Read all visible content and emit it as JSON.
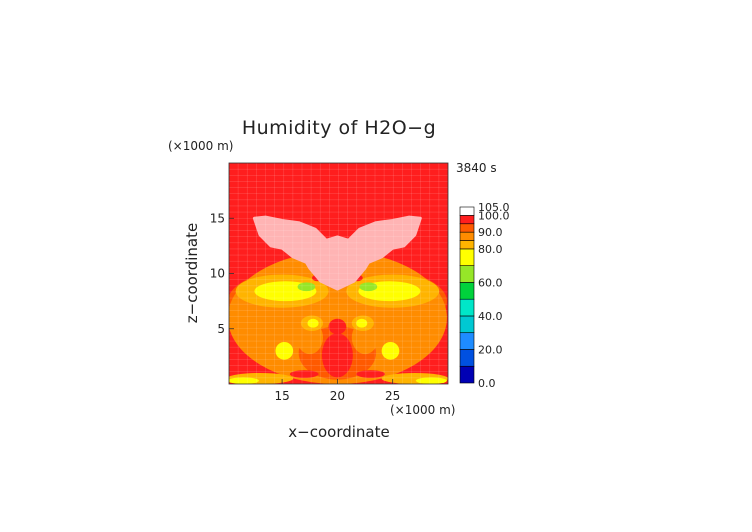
{
  "chart_data": {
    "type": "heatmap",
    "title": "Humidity of H2O−g",
    "time_label": "3840 s",
    "xlabel": "x−coordinate",
    "ylabel": "z−coordinate",
    "x_unit": "(×1000 m)",
    "y_unit": "(×1000 m)",
    "xlim": [
      10.2,
      30.0
    ],
    "ylim": [
      0.0,
      20.0
    ],
    "x_ticks": [
      15,
      20,
      25
    ],
    "y_ticks": [
      5,
      10,
      15
    ],
    "colorbar": {
      "levels": [
        0,
        10,
        20,
        30,
        40,
        50,
        60,
        70,
        80,
        85,
        90,
        95,
        100,
        105
      ],
      "labeled_levels": [
        0.0,
        20.0,
        40.0,
        60.0,
        80.0,
        90.0,
        100.0,
        105.0
      ],
      "colors": [
        "#0000b4",
        "#0050e0",
        "#1e8cff",
        "#00c8d2",
        "#00e6c8",
        "#00d23c",
        "#96e628",
        "#ffff00",
        "#ffb400",
        "#ff8c00",
        "#ff5a00",
        "#ff1e1e",
        "#ffffff"
      ]
    },
    "background_color": "#ff1e1e",
    "regions": [
      {
        "level": 90,
        "color": "#ff5a00",
        "center": [
          20,
          7.5
        ],
        "radii": [
          9.9,
          3.5
        ]
      },
      {
        "level": 85,
        "color": "#ff8c00",
        "center": [
          20,
          6.0
        ],
        "radii": [
          9.9,
          6.0
        ]
      },
      {
        "level": 80,
        "color": "#ffb400",
        "center": [
          15.0,
          8.4
        ],
        "radii": [
          4.2,
          1.5
        ]
      },
      {
        "level": 80,
        "color": "#ffb400",
        "center": [
          25.0,
          8.4
        ],
        "radii": [
          4.2,
          1.5
        ]
      },
      {
        "level": 70,
        "color": "#ffff00",
        "center": [
          15.3,
          8.4
        ],
        "radii": [
          2.8,
          0.9
        ]
      },
      {
        "level": 70,
        "color": "#ffff00",
        "center": [
          24.7,
          8.4
        ],
        "radii": [
          2.8,
          0.9
        ]
      },
      {
        "level": 60,
        "color": "#96e628",
        "center": [
          17.2,
          8.8
        ],
        "radii": [
          0.8,
          0.4
        ]
      },
      {
        "level": 60,
        "color": "#96e628",
        "center": [
          22.8,
          8.8
        ],
        "radii": [
          0.8,
          0.4
        ]
      },
      {
        "level": 90,
        "color": "#ff5a00",
        "center": [
          20,
          2.8
        ],
        "radii": [
          3.5,
          2.4
        ]
      },
      {
        "level": 85,
        "color": "#ff8c00",
        "center": [
          17.5,
          4.2
        ],
        "radii": [
          1.2,
          1.5
        ]
      },
      {
        "level": 85,
        "color": "#ff8c00",
        "center": [
          22.5,
          4.2
        ],
        "radii": [
          1.2,
          1.5
        ]
      },
      {
        "level": 80,
        "color": "#ffb400",
        "center": [
          17.7,
          5.5
        ],
        "radii": [
          1.0,
          0.7
        ]
      },
      {
        "level": 80,
        "color": "#ffb400",
        "center": [
          22.3,
          5.5
        ],
        "radii": [
          1.0,
          0.7
        ]
      },
      {
        "level": 70,
        "color": "#ffff00",
        "center": [
          17.8,
          5.5
        ],
        "radii": [
          0.5,
          0.4
        ]
      },
      {
        "level": 70,
        "color": "#ffff00",
        "center": [
          22.2,
          5.5
        ],
        "radii": [
          0.5,
          0.4
        ]
      },
      {
        "level": 100,
        "color": "#ff1e1e",
        "center": [
          20,
          5.2
        ],
        "radii": [
          0.8,
          0.7
        ]
      },
      {
        "level": 100,
        "color": "#ff1e1e",
        "center": [
          20,
          2.6
        ],
        "radii": [
          1.4,
          2.0
        ]
      },
      {
        "level": 70,
        "color": "#ffff00",
        "center": [
          15.2,
          3.0
        ],
        "radii": [
          0.8,
          0.8
        ]
      },
      {
        "level": 70,
        "color": "#ffff00",
        "center": [
          24.8,
          3.0
        ],
        "radii": [
          0.8,
          0.8
        ]
      },
      {
        "level": 80,
        "color": "#ffb400",
        "center": [
          13,
          0.5
        ],
        "radii": [
          3.0,
          0.5
        ]
      },
      {
        "level": 80,
        "color": "#ffb400",
        "center": [
          27,
          0.5
        ],
        "radii": [
          3.0,
          0.5
        ]
      },
      {
        "level": 70,
        "color": "#ffff00",
        "center": [
          11.5,
          0.3
        ],
        "radii": [
          1.4,
          0.3
        ]
      },
      {
        "level": 70,
        "color": "#ffff00",
        "center": [
          28.5,
          0.3
        ],
        "radii": [
          1.4,
          0.3
        ]
      },
      {
        "level": 100,
        "color": "#ff1e1e",
        "center": [
          17.0,
          0.9
        ],
        "radii": [
          1.3,
          0.35
        ]
      },
      {
        "level": 100,
        "color": "#ff1e1e",
        "center": [
          23.0,
          0.9
        ],
        "radii": [
          1.3,
          0.35
        ]
      },
      {
        "level": 100,
        "color": "#ff1e1e",
        "center": [
          18.2,
          9.6
        ],
        "radii": [
          0.5,
          0.3
        ]
      },
      {
        "level": 100,
        "color": "#ff1e1e",
        "center": [
          21.8,
          9.6
        ],
        "radii": [
          0.5,
          0.3
        ]
      }
    ],
    "plume": {
      "level": 105,
      "color": "#ffb4b4",
      "outline": [
        [
          12.5,
          15.0
        ],
        [
          13.5,
          15.1
        ],
        [
          15.0,
          14.8
        ],
        [
          16.5,
          14.6
        ],
        [
          18.0,
          14.0
        ],
        [
          19.0,
          13.0
        ],
        [
          20.0,
          13.3
        ],
        [
          21.0,
          13.0
        ],
        [
          22.0,
          14.0
        ],
        [
          23.5,
          14.6
        ],
        [
          25.0,
          14.8
        ],
        [
          26.5,
          15.1
        ],
        [
          27.5,
          15.0
        ],
        [
          27.0,
          13.5
        ],
        [
          26.0,
          12.5
        ],
        [
          25.0,
          12.3
        ],
        [
          24.0,
          11.5
        ],
        [
          22.8,
          11.0
        ],
        [
          22.5,
          10.5
        ],
        [
          21.5,
          9.3
        ],
        [
          20.0,
          8.6
        ],
        [
          18.5,
          9.3
        ],
        [
          17.5,
          10.5
        ],
        [
          17.2,
          11.0
        ],
        [
          16.0,
          11.5
        ],
        [
          15.0,
          12.3
        ],
        [
          14.0,
          12.5
        ],
        [
          13.0,
          13.5
        ]
      ]
    }
  }
}
